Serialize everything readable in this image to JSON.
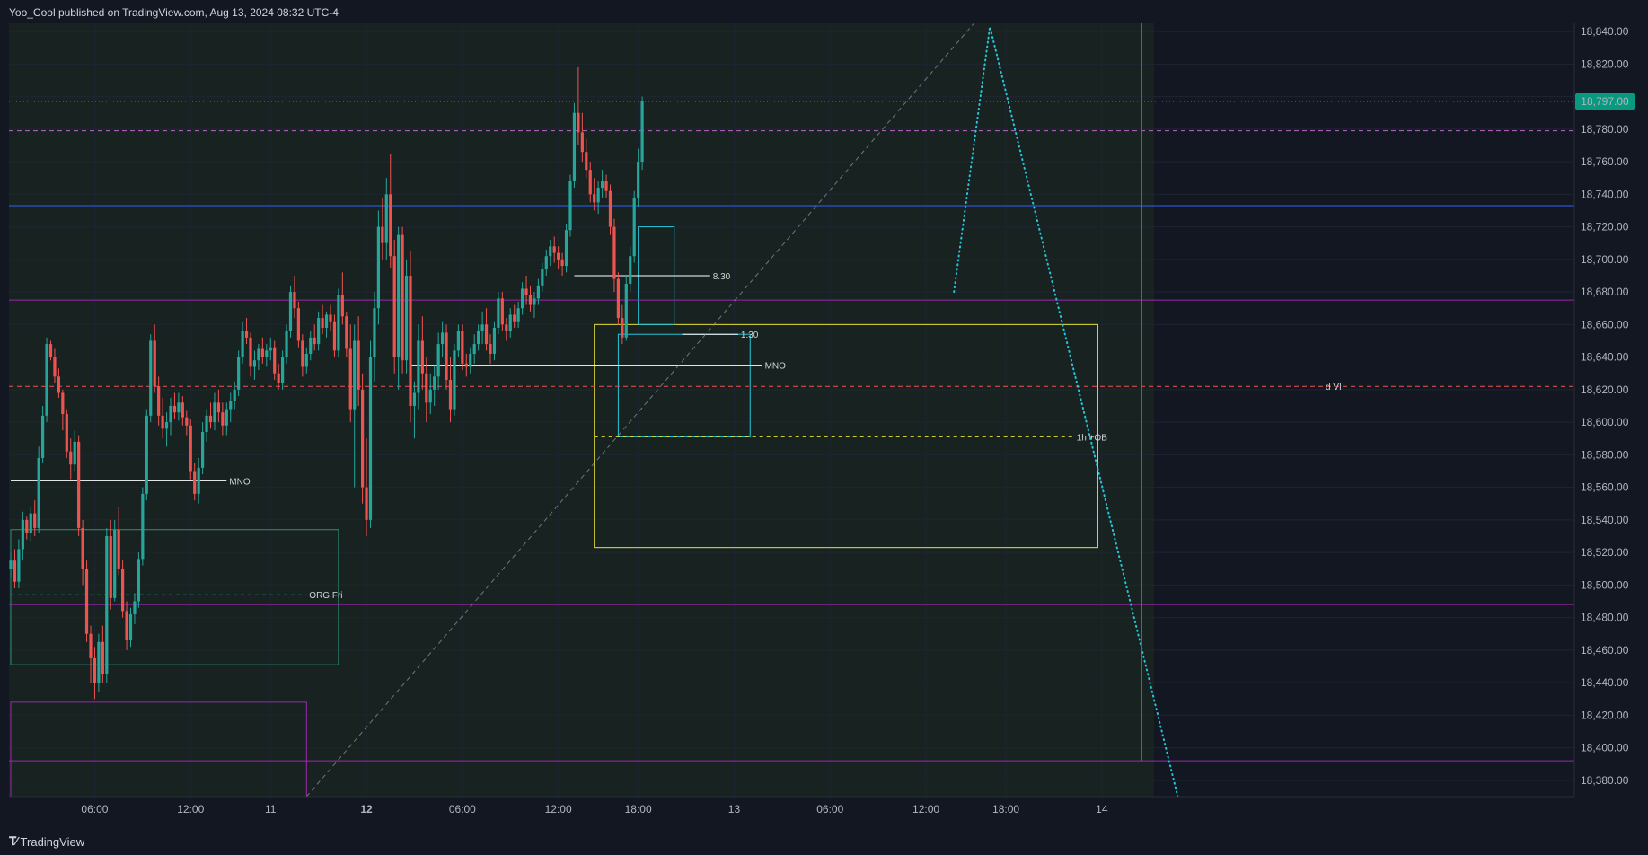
{
  "header": {
    "published": "Yoo_Cool published on TradingView.com, Aug 13, 2024 08:32 UTC-4"
  },
  "footer": {
    "brand": "TradingView",
    "brand_icon": "tradingview-logo-icon"
  },
  "colors": {
    "background": "#131722",
    "session_bg": "#182321",
    "grid": "#1f2431",
    "up": "#26a69a",
    "down": "#ef5350",
    "price_badge": "#089981",
    "blue_line": "#2962ff",
    "purple": "#9c27b0",
    "yellow": "#e8e337",
    "teal_box": "#2a8f78",
    "cyan_dots": "#26c6da",
    "vertical_red": "#f23645"
  },
  "chart_data": {
    "type": "candlestick",
    "y_axis": {
      "min": 18370,
      "max": 18845,
      "ticks": [
        "18,380.00",
        "18,400.00",
        "18,420.00",
        "18,440.00",
        "18,460.00",
        "18,480.00",
        "18,500.00",
        "18,520.00",
        "18,540.00",
        "18,560.00",
        "18,580.00",
        "18,600.00",
        "18,620.00",
        "18,640.00",
        "18,660.00",
        "18,680.00",
        "18,700.00",
        "18,720.00",
        "18,740.00",
        "18,760.00",
        "18,780.00",
        "18,800.00",
        "18,820.00",
        "18,840.00"
      ]
    },
    "x_axis": {
      "ticks": [
        {
          "label": "06:00",
          "bar": 21,
          "bold": false
        },
        {
          "label": "12:00",
          "bar": 45,
          "bold": false
        },
        {
          "label": "11",
          "bar": 65,
          "bold": false
        },
        {
          "label": "12",
          "bar": 89,
          "bold": true
        },
        {
          "label": "06:00",
          "bar": 113,
          "bold": false
        },
        {
          "label": "12:00",
          "bar": 137,
          "bold": false
        },
        {
          "label": "18:00",
          "bar": 157,
          "bold": false
        },
        {
          "label": "13",
          "bar": 181,
          "bold": false
        },
        {
          "label": "06:00",
          "bar": 205,
          "bold": false
        },
        {
          "label": "12:00",
          "bar": 229,
          "bold": false
        },
        {
          "label": "18:00",
          "bar": 249,
          "bold": false
        },
        {
          "label": "14",
          "bar": 273,
          "bold": false
        }
      ]
    },
    "current_price": {
      "value": 18797,
      "label": "18,797.00"
    },
    "candles": [
      [
        18510,
        18520,
        18505,
        18515
      ],
      [
        18515,
        18522,
        18498,
        18502
      ],
      [
        18502,
        18528,
        18498,
        18522
      ],
      [
        18522,
        18545,
        18515,
        18540
      ],
      [
        18540,
        18542,
        18528,
        18532
      ],
      [
        18532,
        18548,
        18527,
        18544
      ],
      [
        18544,
        18552,
        18530,
        18535
      ],
      [
        18535,
        18585,
        18532,
        18578
      ],
      [
        18578,
        18610,
        18575,
        18604
      ],
      [
        18604,
        18652,
        18600,
        18648
      ],
      [
        18648,
        18650,
        18638,
        18640
      ],
      [
        18640,
        18645,
        18624,
        18628
      ],
      [
        18628,
        18633,
        18615,
        18618
      ],
      [
        18618,
        18620,
        18595,
        18605
      ],
      [
        18605,
        18608,
        18578,
        18582
      ],
      [
        18582,
        18590,
        18565,
        18574
      ],
      [
        18574,
        18595,
        18570,
        18588
      ],
      [
        18588,
        18592,
        18530,
        18535
      ],
      [
        18535,
        18540,
        18500,
        18510
      ],
      [
        18510,
        18515,
        18465,
        18470
      ],
      [
        18470,
        18475,
        18440,
        18455
      ],
      [
        18455,
        18462,
        18430,
        18440
      ],
      [
        18440,
        18470,
        18434,
        18465
      ],
      [
        18465,
        18475,
        18440,
        18445
      ],
      [
        18445,
        18535,
        18440,
        18530
      ],
      [
        18530,
        18540,
        18485,
        18492
      ],
      [
        18492,
        18540,
        18490,
        18534
      ],
      [
        18534,
        18548,
        18506,
        18510
      ],
      [
        18510,
        18515,
        18480,
        18484
      ],
      [
        18484,
        18490,
        18460,
        18466
      ],
      [
        18466,
        18486,
        18462,
        18482
      ],
      [
        18482,
        18495,
        18476,
        18490
      ],
      [
        18490,
        18520,
        18486,
        18516
      ],
      [
        18516,
        18560,
        18512,
        18556
      ],
      [
        18556,
        18608,
        18552,
        18604
      ],
      [
        18604,
        18654,
        18600,
        18650
      ],
      [
        18650,
        18660,
        18618,
        18622
      ],
      [
        18622,
        18628,
        18598,
        18604
      ],
      [
        18604,
        18615,
        18590,
        18596
      ],
      [
        18596,
        18606,
        18585,
        18600
      ],
      [
        18600,
        18615,
        18592,
        18610
      ],
      [
        18610,
        18618,
        18602,
        18606
      ],
      [
        18606,
        18618,
        18601,
        18612
      ],
      [
        18612,
        18616,
        18598,
        18603
      ],
      [
        18603,
        18607,
        18592,
        18598
      ],
      [
        18598,
        18602,
        18565,
        18570
      ],
      [
        18570,
        18575,
        18552,
        18556
      ],
      [
        18556,
        18578,
        18550,
        18572
      ],
      [
        18572,
        18600,
        18568,
        18594
      ],
      [
        18594,
        18608,
        18588,
        18604
      ],
      [
        18604,
        18612,
        18596,
        18600
      ],
      [
        18600,
        18618,
        18595,
        18612
      ],
      [
        18612,
        18620,
        18600,
        18606
      ],
      [
        18606,
        18612,
        18592,
        18598
      ],
      [
        18598,
        18612,
        18592,
        18608
      ],
      [
        18608,
        18618,
        18600,
        18613
      ],
      [
        18613,
        18625,
        18608,
        18620
      ],
      [
        18620,
        18644,
        18616,
        18640
      ],
      [
        18640,
        18662,
        18636,
        18656
      ],
      [
        18656,
        18664,
        18648,
        18652
      ],
      [
        18652,
        18655,
        18628,
        18634
      ],
      [
        18634,
        18644,
        18626,
        18638
      ],
      [
        18638,
        18648,
        18632,
        18645
      ],
      [
        18645,
        18652,
        18636,
        18640
      ],
      [
        18640,
        18648,
        18634,
        18644
      ],
      [
        18644,
        18652,
        18638,
        18646
      ],
      [
        18646,
        18650,
        18626,
        18630
      ],
      [
        18630,
        18636,
        18620,
        18624
      ],
      [
        18624,
        18644,
        18620,
        18640
      ],
      [
        18640,
        18660,
        18636,
        18656
      ],
      [
        18656,
        18684,
        18652,
        18680
      ],
      [
        18680,
        18690,
        18664,
        18670
      ],
      [
        18670,
        18674,
        18646,
        18650
      ],
      [
        18650,
        18654,
        18628,
        18634
      ],
      [
        18634,
        18646,
        18630,
        18642
      ],
      [
        18642,
        18656,
        18638,
        18652
      ],
      [
        18652,
        18660,
        18644,
        18648
      ],
      [
        18648,
        18668,
        18644,
        18664
      ],
      [
        18664,
        18672,
        18654,
        18658
      ],
      [
        18658,
        18668,
        18652,
        18666
      ],
      [
        18666,
        18672,
        18656,
        18662
      ],
      [
        18662,
        18666,
        18640,
        18644
      ],
      [
        18644,
        18682,
        18640,
        18678
      ],
      [
        18678,
        18692,
        18660,
        18665
      ],
      [
        18665,
        18668,
        18640,
        18645
      ],
      [
        18645,
        18660,
        18600,
        18608
      ],
      [
        18608,
        18660,
        18560,
        18650
      ],
      [
        18650,
        18665,
        18610,
        18620
      ],
      [
        18620,
        18630,
        18550,
        18560
      ],
      [
        18560,
        18590,
        18530,
        18540
      ],
      [
        18540,
        18650,
        18535,
        18640
      ],
      [
        18640,
        18680,
        18625,
        18670
      ],
      [
        18670,
        18730,
        18660,
        18720
      ],
      [
        18720,
        18738,
        18700,
        18710
      ],
      [
        18710,
        18750,
        18700,
        18740
      ],
      [
        18740,
        18765,
        18695,
        18702
      ],
      [
        18702,
        18712,
        18630,
        18640
      ],
      [
        18640,
        18720,
        18620,
        18715
      ],
      [
        18715,
        18720,
        18630,
        18638
      ],
      [
        18638,
        18700,
        18630,
        18690
      ],
      [
        18690,
        18705,
        18600,
        18610
      ],
      [
        18610,
        18625,
        18590,
        18618
      ],
      [
        18618,
        18660,
        18608,
        18650
      ],
      [
        18650,
        18665,
        18620,
        18630
      ],
      [
        18630,
        18640,
        18600,
        18612
      ],
      [
        18612,
        18630,
        18605,
        18620
      ],
      [
        18620,
        18635,
        18610,
        18628
      ],
      [
        18628,
        18655,
        18620,
        18648
      ],
      [
        18648,
        18662,
        18640,
        18655
      ],
      [
        18655,
        18660,
        18620,
        18626
      ],
      [
        18626,
        18640,
        18600,
        18608
      ],
      [
        18608,
        18648,
        18604,
        18644
      ],
      [
        18644,
        18660,
        18640,
        18656
      ],
      [
        18656,
        18660,
        18632,
        18636
      ],
      [
        18636,
        18642,
        18628,
        18634
      ],
      [
        18634,
        18646,
        18630,
        18642
      ],
      [
        18642,
        18654,
        18636,
        18648
      ],
      [
        18648,
        18660,
        18644,
        18656
      ],
      [
        18656,
        18668,
        18648,
        18660
      ],
      [
        18660,
        18670,
        18644,
        18648
      ],
      [
        18648,
        18654,
        18636,
        18642
      ],
      [
        18642,
        18662,
        18638,
        18658
      ],
      [
        18658,
        18680,
        18654,
        18676
      ],
      [
        18676,
        18680,
        18656,
        18660
      ],
      [
        18660,
        18664,
        18650,
        18656
      ],
      [
        18656,
        18670,
        18652,
        18666
      ],
      [
        18666,
        18672,
        18658,
        18662
      ],
      [
        18662,
        18674,
        18658,
        18670
      ],
      [
        18670,
        18686,
        18666,
        18682
      ],
      [
        18682,
        18690,
        18672,
        18678
      ],
      [
        18678,
        18684,
        18668,
        18672
      ],
      [
        18672,
        18680,
        18664,
        18676
      ],
      [
        18676,
        18688,
        18672,
        18684
      ],
      [
        18684,
        18698,
        18680,
        18694
      ],
      [
        18694,
        18706,
        18690,
        18702
      ],
      [
        18702,
        18712,
        18696,
        18708
      ],
      [
        18708,
        18714,
        18698,
        18704
      ],
      [
        18704,
        18708,
        18694,
        18700
      ],
      [
        18700,
        18704,
        18690,
        18696
      ],
      [
        18696,
        18722,
        18692,
        18718
      ],
      [
        18718,
        18752,
        18714,
        18748
      ],
      [
        18748,
        18796,
        18744,
        18790
      ],
      [
        18790,
        18818,
        18770,
        18778
      ],
      [
        18778,
        18790,
        18760,
        18766
      ],
      [
        18766,
        18774,
        18750,
        18755
      ],
      [
        18755,
        18760,
        18735,
        18740
      ],
      [
        18740,
        18750,
        18730,
        18735
      ],
      [
        18735,
        18748,
        18728,
        18744
      ],
      [
        18744,
        18755,
        18738,
        18748
      ],
      [
        18748,
        18752,
        18738,
        18742
      ],
      [
        18742,
        18746,
        18715,
        18720
      ],
      [
        18720,
        18725,
        18680,
        18688
      ],
      [
        18688,
        18692,
        18660,
        18664
      ],
      [
        18664,
        18672,
        18648,
        18652
      ],
      [
        18652,
        18690,
        18650,
        18685
      ],
      [
        18685,
        18708,
        18680,
        18702
      ],
      [
        18702,
        18742,
        18698,
        18738
      ],
      [
        18738,
        18768,
        18732,
        18760
      ],
      [
        18760,
        18800,
        18755,
        18797
      ]
    ],
    "horizontal_levels": [
      {
        "price": 18797,
        "style": "dotted",
        "color": "#26a69a"
      },
      {
        "price": 18779,
        "style": "dashed",
        "color": "#ba68c8"
      },
      {
        "price": 18733,
        "style": "solid",
        "color": "#2962ff"
      },
      {
        "price": 18675,
        "style": "solid",
        "color": "#9c27b0"
      },
      {
        "price": 18622,
        "style": "dashed",
        "color": "#ef5350",
        "label": "d VI"
      },
      {
        "price": 18488,
        "style": "solid",
        "color": "#9c27b0"
      },
      {
        "price": 18392,
        "style": "solid",
        "color": "#9c27b0"
      }
    ],
    "annotations": [
      {
        "label": "MNO",
        "price": 18564,
        "from_bar": 0,
        "to_bar": 54,
        "color": "#ffffff"
      },
      {
        "label": "8.30",
        "price": 18690,
        "from_bar": 141,
        "to_bar": 175,
        "color": "#ffffff"
      },
      {
        "label": "1.30",
        "price": 18654,
        "from_bar": 168,
        "to_bar": 182,
        "color": "#ffffff"
      },
      {
        "label": "MNO",
        "price": 18635,
        "from_bar": 100,
        "to_bar": 188,
        "color": "#ffffff"
      },
      {
        "label": "1h +OB",
        "price": 18591,
        "from_bar": 146,
        "to_bar": 266,
        "color": "#e8e337"
      },
      {
        "label": "ORG Fri",
        "price": 18494,
        "from_bar": 0,
        "to_bar": 74,
        "color": "#2a8f78"
      }
    ],
    "boxes": [
      {
        "name": "ob-zone",
        "from_bar": 146,
        "to_bar": 272,
        "top": 18660,
        "bottom": 18523,
        "color": "#e8e337"
      },
      {
        "name": "org-range",
        "from_bar": 0,
        "to_bar": 82,
        "top": 18534,
        "bottom": 18451,
        "color": "#2a8f78"
      },
      {
        "name": "purple-range",
        "from_bar": 0,
        "to_bar": 74,
        "top": 18428,
        "bottom": 18370,
        "color": "#9c27b0"
      },
      {
        "name": "cyan-range",
        "from_bar": 152,
        "to_bar": 185,
        "top": 18654,
        "bottom": 18591,
        "color": "#26c6da"
      },
      {
        "name": "cyan-range-2",
        "from_bar": 157,
        "to_bar": 166,
        "top": 18720,
        "bottom": 18660,
        "color": "#26c6da"
      }
    ]
  }
}
